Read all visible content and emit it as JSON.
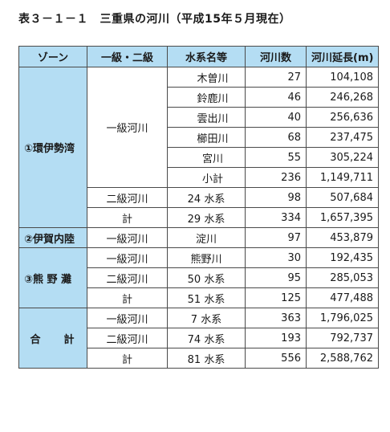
{
  "title": "表３－１－１　三重県の河川（平成15年５月現在）",
  "headers": [
    "ゾーン",
    "一級・二級",
    "水系名等",
    "河川数",
    "河川延長(m)"
  ],
  "zones": {
    "ise": "①環伊勢湾",
    "iga": "②伊賀内陸",
    "kumano": "③熊 野 灘",
    "total": "合　計"
  },
  "classes": {
    "first": "一級河川",
    "second": "二級河川",
    "total": "計"
  },
  "rows": [
    {
      "system": "木曽川",
      "count": "27",
      "length": "104,108"
    },
    {
      "system": "鈴鹿川",
      "count": "46",
      "length": "246,268"
    },
    {
      "system": "雲出川",
      "count": "40",
      "length": "256,636"
    },
    {
      "system": "櫛田川",
      "count": "68",
      "length": "237,475"
    },
    {
      "system": "宮川",
      "count": "55",
      "length": "305,224"
    },
    {
      "system": "小計",
      "count": "236",
      "length": "1,149,711"
    },
    {
      "system": "24 水系",
      "count": "98",
      "length": "507,684"
    },
    {
      "system": "29 水系",
      "count": "334",
      "length": "1,657,395"
    },
    {
      "system": "淀川",
      "count": "97",
      "length": "453,879"
    },
    {
      "system": "熊野川",
      "count": "30",
      "length": "192,435"
    },
    {
      "system": "50 水系",
      "count": "95",
      "length": "285,053"
    },
    {
      "system": "51 水系",
      "count": "125",
      "length": "477,488"
    },
    {
      "system": "7 水系",
      "count": "363",
      "length": "1,796,025"
    },
    {
      "system": "74 水系",
      "count": "193",
      "length": "792,737"
    },
    {
      "system": "81 水系",
      "count": "556",
      "length": "2,588,762"
    }
  ],
  "colors": {
    "header_bg": "#b4ddf3",
    "border": "#4a4a4a"
  }
}
